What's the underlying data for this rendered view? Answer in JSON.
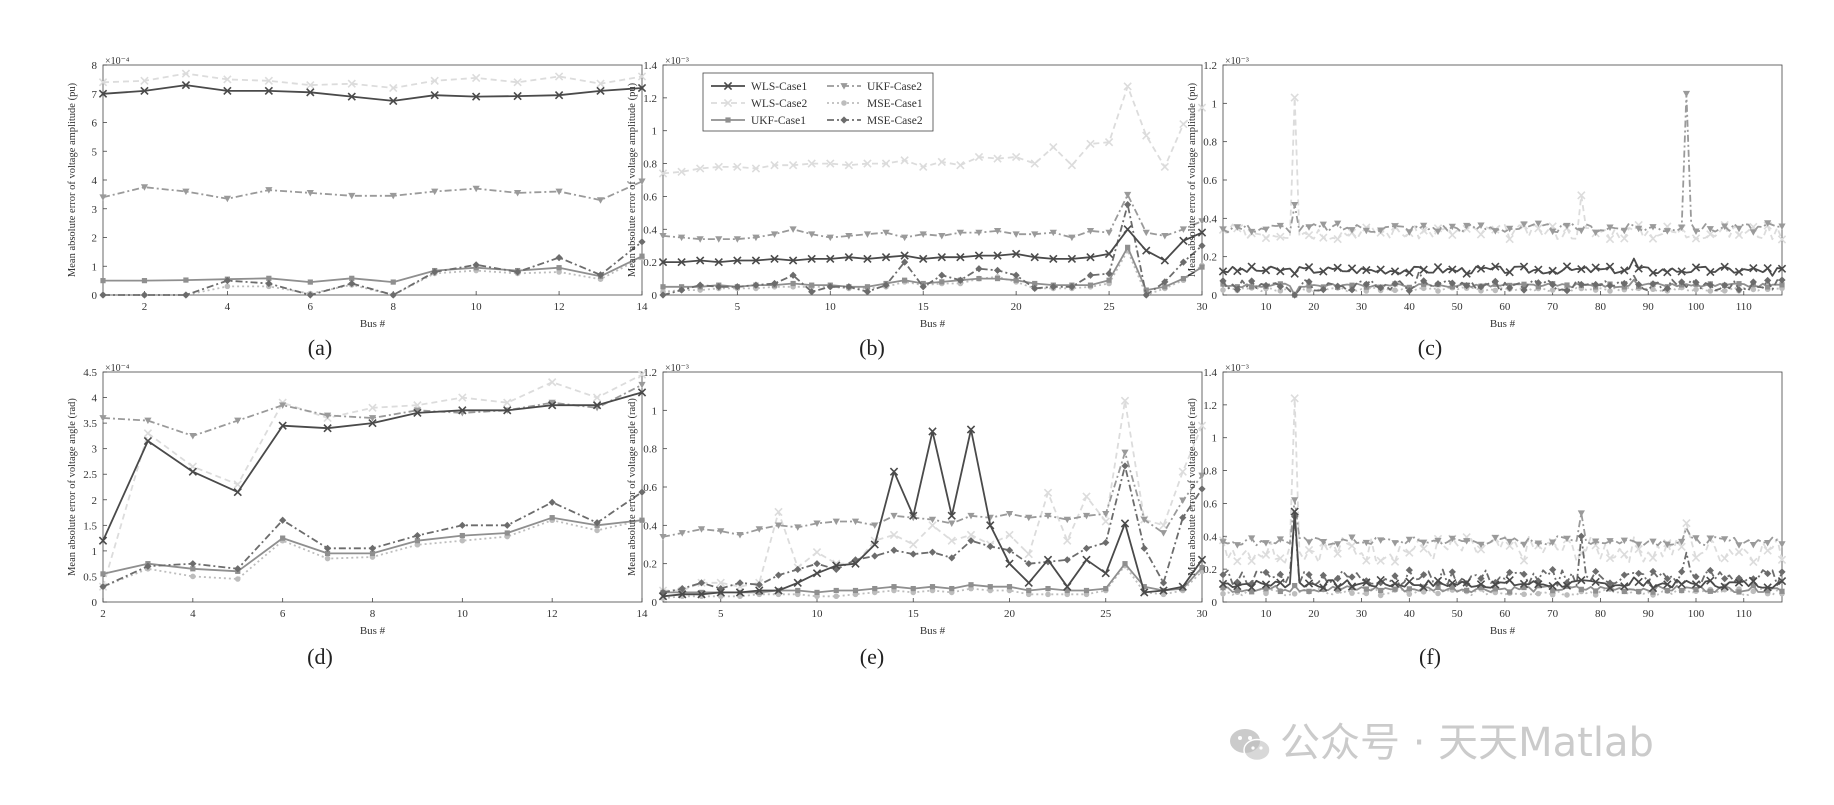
{
  "watermark": {
    "text": "公众号 · 天天Matlab",
    "icon": "wechat-icon"
  },
  "legend": [
    {
      "name": "WLS-Case1",
      "color": "#4a4a4a",
      "dash": "solid",
      "marker": "x"
    },
    {
      "name": "UKF-Case2",
      "color": "#9a9a9a",
      "dash": "dashdot",
      "marker": "tri"
    },
    {
      "name": "WLS-Case2",
      "color": "#dcdcdc",
      "dash": "dashed",
      "marker": "x"
    },
    {
      "name": "MSE-Case1",
      "color": "#bdbdbd",
      "dash": "dotted",
      "marker": "circle"
    },
    {
      "name": "UKF-Case1",
      "color": "#8f8f8f",
      "dash": "solid",
      "marker": "square"
    },
    {
      "name": "MSE-Case2",
      "color": "#6c6c6c",
      "dash": "dashdot",
      "marker": "diamond"
    }
  ],
  "chart_data": [
    {
      "id": "a",
      "type": "line",
      "label": "(a)",
      "xlabel": "Bus #",
      "ylabel": "Mean absolute error of voltage amplitude (pu)",
      "multiplier": "×10⁻⁴",
      "xlim": [
        1,
        14
      ],
      "ylim": [
        0,
        8
      ],
      "xticks": [
        2,
        4,
        6,
        8,
        10,
        12,
        14
      ],
      "yticks": [
        0,
        1,
        2,
        3,
        4,
        5,
        6,
        7,
        8
      ],
      "x": [
        1,
        2,
        3,
        4,
        5,
        6,
        7,
        8,
        9,
        10,
        11,
        12,
        13,
        14
      ],
      "series": [
        {
          "name": "WLS-Case1",
          "values": [
            7.0,
            7.1,
            7.3,
            7.1,
            7.1,
            7.05,
            6.9,
            6.75,
            6.95,
            6.9,
            6.92,
            6.95,
            7.1,
            7.2
          ]
        },
        {
          "name": "WLS-Case2",
          "values": [
            7.4,
            7.45,
            7.7,
            7.5,
            7.45,
            7.3,
            7.35,
            7.2,
            7.45,
            7.55,
            7.4,
            7.6,
            7.35,
            7.6
          ]
        },
        {
          "name": "UKF-Case2",
          "values": [
            3.4,
            3.75,
            3.6,
            3.35,
            3.65,
            3.55,
            3.45,
            3.45,
            3.6,
            3.7,
            3.55,
            3.6,
            3.3,
            3.95
          ]
        },
        {
          "name": "UKF-Case1",
          "values": [
            0.5,
            0.5,
            0.52,
            0.55,
            0.58,
            0.45,
            0.58,
            0.45,
            0.85,
            0.95,
            0.85,
            0.95,
            0.65,
            1.35
          ]
        },
        {
          "name": "MSE-Case1",
          "values": [
            0.0,
            0.0,
            0.0,
            0.3,
            0.3,
            0.05,
            0.35,
            0.0,
            0.75,
            0.85,
            0.75,
            0.8,
            0.55,
            1.3
          ]
        },
        {
          "name": "MSE-Case2",
          "values": [
            0.0,
            0.0,
            0.0,
            0.5,
            0.4,
            0.0,
            0.4,
            0.0,
            0.8,
            1.05,
            0.8,
            1.3,
            0.7,
            1.85
          ]
        }
      ]
    },
    {
      "id": "b",
      "type": "line",
      "label": "(b)",
      "xlabel": "Bus #",
      "ylabel": "Mean absolute error of voltage amplitude (pu)",
      "multiplier": "×10⁻³",
      "xlim": [
        1,
        30
      ],
      "ylim": [
        0,
        1.4
      ],
      "xticks": [
        5,
        10,
        15,
        20,
        25,
        30
      ],
      "yticks": [
        0,
        0.2,
        0.4,
        0.6,
        0.8,
        1,
        1.2,
        1.4
      ],
      "legend_inside": true,
      "x": [
        1,
        2,
        3,
        4,
        5,
        6,
        7,
        8,
        9,
        10,
        11,
        12,
        13,
        14,
        15,
        16,
        17,
        18,
        19,
        20,
        21,
        22,
        23,
        24,
        25,
        26,
        27,
        28,
        29,
        30
      ],
      "series": [
        {
          "name": "WLS-Case1",
          "values": [
            0.2,
            0.2,
            0.21,
            0.2,
            0.21,
            0.21,
            0.22,
            0.21,
            0.22,
            0.22,
            0.23,
            0.22,
            0.23,
            0.24,
            0.22,
            0.23,
            0.23,
            0.24,
            0.24,
            0.25,
            0.23,
            0.22,
            0.22,
            0.23,
            0.25,
            0.4,
            0.27,
            0.21,
            0.33,
            0.38
          ]
        },
        {
          "name": "WLS-Case2",
          "values": [
            0.74,
            0.75,
            0.77,
            0.78,
            0.78,
            0.77,
            0.79,
            0.79,
            0.8,
            0.8,
            0.79,
            0.8,
            0.8,
            0.82,
            0.78,
            0.81,
            0.79,
            0.84,
            0.83,
            0.84,
            0.8,
            0.9,
            0.79,
            0.92,
            0.93,
            1.27,
            0.97,
            0.78,
            1.04,
            1.14
          ]
        },
        {
          "name": "UKF-Case2",
          "values": [
            0.36,
            0.35,
            0.34,
            0.34,
            0.34,
            0.35,
            0.37,
            0.4,
            0.37,
            0.35,
            0.36,
            0.37,
            0.38,
            0.35,
            0.37,
            0.36,
            0.38,
            0.38,
            0.39,
            0.37,
            0.37,
            0.38,
            0.35,
            0.39,
            0.38,
            0.61,
            0.38,
            0.36,
            0.4,
            0.45
          ]
        },
        {
          "name": "UKF-Case1",
          "values": [
            0.05,
            0.05,
            0.05,
            0.06,
            0.05,
            0.06,
            0.06,
            0.07,
            0.06,
            0.06,
            0.05,
            0.05,
            0.07,
            0.09,
            0.07,
            0.08,
            0.09,
            0.1,
            0.1,
            0.09,
            0.07,
            0.06,
            0.06,
            0.06,
            0.09,
            0.29,
            0.03,
            0.05,
            0.1,
            0.17
          ]
        },
        {
          "name": "MSE-Case1",
          "values": [
            0.02,
            0.03,
            0.03,
            0.04,
            0.04,
            0.04,
            0.05,
            0.05,
            0.05,
            0.05,
            0.04,
            0.04,
            0.05,
            0.08,
            0.06,
            0.07,
            0.07,
            0.1,
            0.11,
            0.08,
            0.04,
            0.04,
            0.04,
            0.05,
            0.07,
            0.27,
            0.0,
            0.04,
            0.09,
            0.18
          ]
        },
        {
          "name": "MSE-Case2",
          "values": [
            0.0,
            0.03,
            0.06,
            0.05,
            0.05,
            0.06,
            0.07,
            0.12,
            0.02,
            0.05,
            0.05,
            0.02,
            0.06,
            0.2,
            0.05,
            0.12,
            0.09,
            0.16,
            0.15,
            0.12,
            0.04,
            0.05,
            0.05,
            0.12,
            0.13,
            0.55,
            0.0,
            0.08,
            0.2,
            0.3
          ]
        }
      ]
    },
    {
      "id": "c",
      "type": "line",
      "label": "(c)",
      "xlabel": "Bus #",
      "ylabel": "Mean absolute error of voltage amplitude (pu)",
      "multiplier": "×10⁻³",
      "xlim": [
        1,
        118
      ],
      "ylim": [
        0,
        1.2
      ],
      "xticks": [
        10,
        20,
        30,
        40,
        50,
        60,
        70,
        80,
        90,
        100,
        110
      ],
      "yticks": [
        0,
        0.2,
        0.4,
        0.6,
        0.8,
        1,
        1.2
      ],
      "series_profile": "ieee118-amplitude"
    },
    {
      "id": "d",
      "type": "line",
      "label": "(d)",
      "xlabel": "Bus #",
      "ylabel": "Mean absolute error of voltage angle (rad)",
      "multiplier": "×10⁻⁴",
      "xlim": [
        2,
        14
      ],
      "ylim": [
        0,
        4.5
      ],
      "xticks": [
        2,
        4,
        6,
        8,
        10,
        12,
        14
      ],
      "yticks": [
        0,
        0.5,
        1,
        1.5,
        2,
        2.5,
        3,
        3.5,
        4,
        4.5
      ],
      "x": [
        2,
        3,
        4,
        5,
        6,
        7,
        8,
        9,
        10,
        11,
        12,
        13,
        14
      ],
      "series": [
        {
          "name": "WLS-Case1",
          "values": [
            1.2,
            3.15,
            2.55,
            2.15,
            3.45,
            3.4,
            3.5,
            3.7,
            3.75,
            3.75,
            3.85,
            3.85,
            4.1
          ]
        },
        {
          "name": "WLS-Case2",
          "values": [
            0.3,
            3.3,
            2.65,
            2.3,
            3.9,
            3.6,
            3.8,
            3.85,
            4.0,
            3.9,
            4.3,
            4.0,
            4.45
          ]
        },
        {
          "name": "UKF-Case2",
          "values": [
            3.6,
            3.55,
            3.25,
            3.55,
            3.85,
            3.65,
            3.6,
            3.75,
            3.7,
            3.75,
            3.9,
            3.8,
            4.25
          ]
        },
        {
          "name": "UKF-Case1",
          "values": [
            0.55,
            0.75,
            0.65,
            0.6,
            1.25,
            0.95,
            0.95,
            1.2,
            1.3,
            1.35,
            1.65,
            1.5,
            1.6
          ]
        },
        {
          "name": "MSE-Case1",
          "values": [
            0.3,
            0.65,
            0.5,
            0.45,
            1.2,
            0.85,
            0.88,
            1.12,
            1.2,
            1.28,
            1.6,
            1.4,
            1.6
          ]
        },
        {
          "name": "MSE-Case2",
          "values": [
            0.3,
            0.7,
            0.75,
            0.65,
            1.6,
            1.05,
            1.05,
            1.3,
            1.5,
            1.5,
            1.95,
            1.55,
            2.15
          ]
        }
      ]
    },
    {
      "id": "e",
      "type": "line",
      "label": "(e)",
      "xlabel": "Bus #",
      "ylabel": "Mean absolute error of voltage angle (rad)",
      "multiplier": "×10⁻³",
      "xlim": [
        2,
        30
      ],
      "ylim": [
        0,
        1.2
      ],
      "xticks": [
        5,
        10,
        15,
        20,
        25,
        30
      ],
      "yticks": [
        0,
        0.2,
        0.4,
        0.6,
        0.8,
        1,
        1.2
      ],
      "x": [
        2,
        3,
        4,
        5,
        6,
        7,
        8,
        9,
        10,
        11,
        12,
        13,
        14,
        15,
        16,
        17,
        18,
        19,
        20,
        21,
        22,
        23,
        24,
        25,
        26,
        27,
        28,
        29,
        30
      ],
      "series": [
        {
          "name": "WLS-Case1",
          "values": [
            0.03,
            0.04,
            0.04,
            0.05,
            0.05,
            0.06,
            0.06,
            0.1,
            0.15,
            0.19,
            0.2,
            0.3,
            0.68,
            0.45,
            0.89,
            0.45,
            0.9,
            0.4,
            0.2,
            0.1,
            0.22,
            0.08,
            0.22,
            0.15,
            0.41,
            0.05,
            0.06,
            0.08,
            0.22
          ]
        },
        {
          "name": "WLS-Case2",
          "values": [
            0.06,
            0.06,
            0.1,
            0.1,
            0.08,
            0.1,
            0.47,
            0.18,
            0.26,
            0.2,
            0.2,
            0.32,
            0.35,
            0.3,
            0.4,
            0.32,
            0.35,
            0.3,
            0.35,
            0.25,
            0.57,
            0.32,
            0.55,
            0.42,
            1.05,
            0.43,
            0.4,
            0.68,
            0.92
          ]
        },
        {
          "name": "UKF-Case2",
          "values": [
            0.34,
            0.36,
            0.38,
            0.37,
            0.35,
            0.38,
            0.4,
            0.39,
            0.41,
            0.42,
            0.42,
            0.4,
            0.45,
            0.44,
            0.43,
            0.41,
            0.45,
            0.44,
            0.46,
            0.44,
            0.45,
            0.43,
            0.45,
            0.46,
            0.78,
            0.43,
            0.36,
            0.53,
            0.66
          ]
        },
        {
          "name": "UKF-Case1",
          "values": [
            0.05,
            0.05,
            0.05,
            0.05,
            0.05,
            0.05,
            0.06,
            0.06,
            0.05,
            0.06,
            0.06,
            0.07,
            0.08,
            0.07,
            0.08,
            0.07,
            0.09,
            0.08,
            0.08,
            0.06,
            0.07,
            0.06,
            0.06,
            0.07,
            0.2,
            0.08,
            0.06,
            0.07,
            0.18
          ]
        },
        {
          "name": "MSE-Case1",
          "values": [
            0.02,
            0.03,
            0.03,
            0.03,
            0.03,
            0.04,
            0.04,
            0.04,
            0.03,
            0.03,
            0.04,
            0.05,
            0.06,
            0.05,
            0.06,
            0.05,
            0.07,
            0.06,
            0.06,
            0.04,
            0.04,
            0.04,
            0.04,
            0.06,
            0.19,
            0.05,
            0.04,
            0.06,
            0.16
          ]
        },
        {
          "name": "MSE-Case2",
          "values": [
            0.05,
            0.07,
            0.1,
            0.07,
            0.1,
            0.09,
            0.14,
            0.17,
            0.2,
            0.17,
            0.22,
            0.24,
            0.27,
            0.25,
            0.26,
            0.23,
            0.32,
            0.29,
            0.27,
            0.2,
            0.21,
            0.22,
            0.28,
            0.31,
            0.71,
            0.28,
            0.1,
            0.44,
            0.59
          ]
        }
      ]
    },
    {
      "id": "f",
      "type": "line",
      "label": "(f)",
      "xlabel": "Bus #",
      "ylabel": "Mean absolute error of voltage angle (rad)",
      "multiplier": "×10⁻³",
      "xlim": [
        1,
        118
      ],
      "ylim": [
        0,
        1.4
      ],
      "xticks": [
        10,
        20,
        30,
        40,
        50,
        60,
        70,
        80,
        90,
        100,
        110
      ],
      "yticks": [
        0,
        0.2,
        0.4,
        0.6,
        0.8,
        1,
        1.2,
        1.4
      ],
      "series_profile": "ieee118-angle"
    }
  ]
}
